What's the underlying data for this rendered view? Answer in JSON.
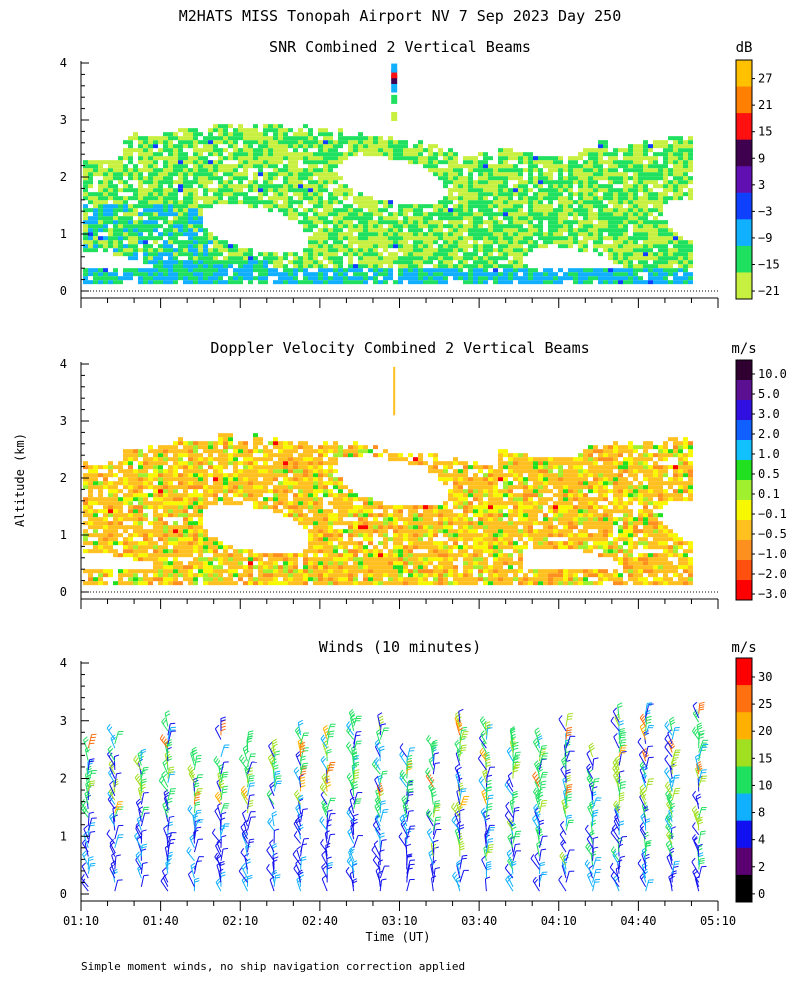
{
  "title": "M2HATS MISS Tonopah Airport NV   7 Sep 2023 Day 250",
  "y_axis_label": "Altitude (km)",
  "x_axis_label": "Time (UT)",
  "footnote": "Simple moment winds, no ship navigation correction applied",
  "colors": {
    "axis": "#000000",
    "white": "#ffffff"
  },
  "chart_data": [
    {
      "type": "heatmap",
      "title": "SNR Combined 2 Vertical Beams",
      "ylabel": "Altitude (km)",
      "ylim": [
        0,
        4
      ],
      "yticks": [
        "0",
        "1",
        "2",
        "3",
        "4"
      ],
      "xlim": [
        "01:10",
        "05:10"
      ],
      "colorbar": {
        "unit": "dB",
        "labels": [
          "27",
          "21",
          "15",
          "9",
          "3",
          "−3",
          "−9",
          "−15",
          "−21"
        ],
        "colors": [
          "#ffc000",
          "#ff8000",
          "#ff1010",
          "#400050",
          "#6010b0",
          "#1040ff",
          "#10b0ff",
          "#20e060",
          "#c8f040"
        ]
      },
      "top_signal_km": 2.8,
      "features": "Noise echo from 0.1 to ~2.8 km throughout 01:10-05:00 UT; isolated plume at ~03:08 UT up to ~3.9 km"
    },
    {
      "type": "heatmap",
      "title": "Doppler Velocity Combined 2 Vertical Beams",
      "ylabel": "Altitude (km)",
      "ylim": [
        0,
        4
      ],
      "yticks": [
        "0",
        "1",
        "2",
        "3",
        "4"
      ],
      "xlim": [
        "01:10",
        "05:10"
      ],
      "colorbar": {
        "unit": "m/s",
        "labels": [
          "10.0",
          "5.0",
          "3.0",
          "2.0",
          "1.0",
          "0.5",
          "0.1",
          "−0.1",
          "−0.5",
          "−1.0",
          "−2.0",
          "−3.0"
        ],
        "colors": [
          "#300030",
          "#5a1090",
          "#3010e0",
          "#1060ff",
          "#10c0ff",
          "#20e020",
          "#a0f030",
          "#f8f800",
          "#ffc020",
          "#ff9020",
          "#ff5010",
          "#ff0000"
        ]
      },
      "dominant_range_ms": [
        -1.0,
        -0.1
      ]
    },
    {
      "type": "scatter",
      "title": "Winds (10 minutes)",
      "ylabel": "Altitude (km)",
      "ylim": [
        0,
        4
      ],
      "yticks": [
        "0",
        "1",
        "2",
        "3",
        "4"
      ],
      "xlabel": "Time (UT)",
      "xticks": [
        "01:10",
        "01:40",
        "02:10",
        "02:40",
        "03:10",
        "03:40",
        "04:10",
        "04:40",
        "05:10"
      ],
      "colorbar": {
        "unit": "m/s",
        "labels": [
          "30",
          "25",
          "20",
          "15",
          "10",
          "8",
          "4",
          "2",
          "0"
        ],
        "colors": [
          "#ff0000",
          "#ff7010",
          "#ffb000",
          "#a0e020",
          "#20e060",
          "#10b0ff",
          "#1010f0",
          "#5a0070",
          "#000000"
        ]
      },
      "profile_times": [
        "01:15",
        "01:25",
        "01:35",
        "01:45",
        "01:55",
        "02:05",
        "02:15",
        "02:25",
        "02:35",
        "02:45",
        "02:55",
        "03:05",
        "03:15",
        "03:25",
        "03:35",
        "03:45",
        "03:55",
        "04:05",
        "04:15",
        "04:25",
        "04:35",
        "04:45",
        "04:55",
        "05:05"
      ],
      "max_height_km": 3.3
    }
  ]
}
